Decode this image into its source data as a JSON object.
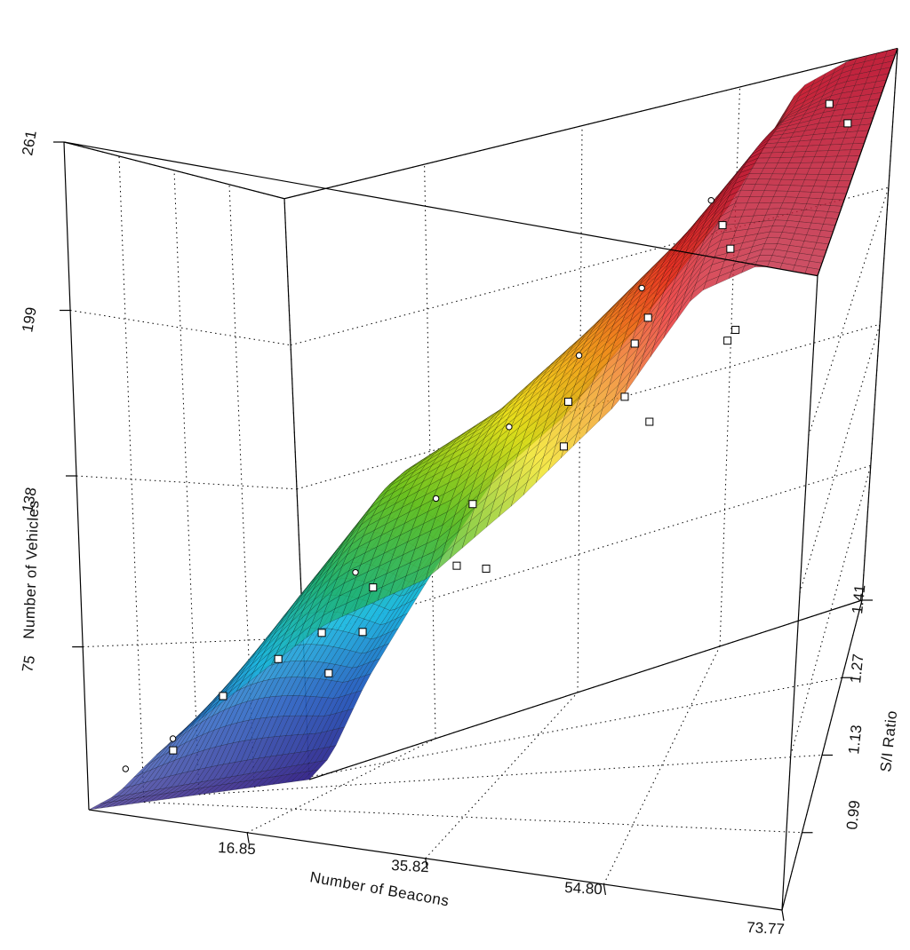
{
  "chart_data": {
    "type": "surface3d",
    "title": "",
    "xlabel": "Number of Beacons",
    "ylabel": "S/I Ratio",
    "zlabel": "Number of Vehicles",
    "x_ticks": [
      "16.85",
      "35.82",
      "54.80",
      "73.77"
    ],
    "y_ticks": [
      "0.99",
      "1.13",
      "1.27",
      "1.41"
    ],
    "z_ticks": [
      "75",
      "138",
      "199",
      "261"
    ],
    "xlim": [
      0,
      73.77
    ],
    "ylim": [
      0.85,
      1.41
    ],
    "zlim": [
      15,
      261
    ],
    "colormap": [
      "#3a2a8c",
      "#2a5fc0",
      "#17b8e0",
      "#1db06a",
      "#6cc21a",
      "#f2e21a",
      "#f08a1a",
      "#e82424",
      "#c0203a"
    ],
    "surface_profile": {
      "x": [
        0,
        3,
        8,
        16.85,
        25,
        35.82,
        45,
        54.8,
        62,
        68,
        73.77
      ],
      "z": [
        15,
        22,
        55,
        100,
        138,
        162,
        192,
        228,
        261,
        261,
        261
      ]
    },
    "surface_y_dip": [
      0,
      0,
      18,
      40,
      55,
      55,
      48,
      38,
      20,
      0,
      0
    ],
    "points": [
      {
        "x": 2,
        "y": 0.9,
        "z": 30
      },
      {
        "x": 6,
        "y": 0.93,
        "z": 42
      },
      {
        "x": 10,
        "y": 0.97,
        "z": 58
      },
      {
        "x": 15,
        "y": 1.0,
        "z": 72
      },
      {
        "x": 18,
        "y": 1.05,
        "z": 80
      },
      {
        "x": 22,
        "y": 1.1,
        "z": 95
      },
      {
        "x": 26,
        "y": 0.95,
        "z": 88
      },
      {
        "x": 30,
        "y": 1.2,
        "z": 120
      },
      {
        "x": 34,
        "y": 1.02,
        "z": 110
      },
      {
        "x": 38,
        "y": 1.3,
        "z": 150
      },
      {
        "x": 42,
        "y": 1.15,
        "z": 145
      },
      {
        "x": 46,
        "y": 1.35,
        "z": 175
      },
      {
        "x": 50,
        "y": 1.1,
        "z": 170
      },
      {
        "x": 54,
        "y": 1.38,
        "z": 205
      },
      {
        "x": 58,
        "y": 1.25,
        "z": 210
      },
      {
        "x": 62,
        "y": 1.05,
        "z": 200
      },
      {
        "x": 66,
        "y": 1.4,
        "z": 245
      },
      {
        "x": 70,
        "y": 1.3,
        "z": 250
      },
      {
        "x": 12,
        "y": 1.3,
        "z": 95
      },
      {
        "x": 20,
        "y": 1.35,
        "z": 118
      },
      {
        "x": 28,
        "y": 1.38,
        "z": 140
      },
      {
        "x": 36,
        "y": 1.4,
        "z": 162
      },
      {
        "x": 44,
        "y": 1.39,
        "z": 185
      },
      {
        "x": 52,
        "y": 1.4,
        "z": 215
      },
      {
        "x": 8,
        "y": 0.88,
        "z": 40
      },
      {
        "x": 24,
        "y": 0.9,
        "z": 75
      },
      {
        "x": 40,
        "y": 0.92,
        "z": 120
      },
      {
        "x": 56,
        "y": 0.95,
        "z": 180
      },
      {
        "x": 64,
        "y": 0.98,
        "z": 215
      },
      {
        "x": 48,
        "y": 1.22,
        "z": 178
      }
    ]
  }
}
